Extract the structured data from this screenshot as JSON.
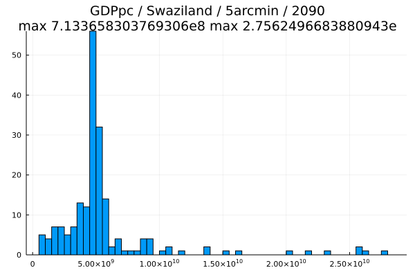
{
  "chart_data": {
    "type": "bar",
    "title": "GDPpc / Swaziland / 5arcmin / 2090",
    "subtitle": "max 7.133658303769306e8  max 2.7562496683880943e",
    "xlabel": "",
    "ylabel": "",
    "grid": true,
    "legend": "none",
    "bar_color": "#009AF9",
    "bin_width": 500000000,
    "xlim": [
      -500000000,
      29500000000
    ],
    "ylim": [
      0,
      56
    ],
    "x": [
      500000000,
      1000000000,
      1500000000,
      2000000000,
      2500000000,
      3000000000,
      3500000000,
      4000000000,
      4500000000,
      5000000000,
      5500000000,
      6000000000,
      6500000000,
      7000000000,
      7500000000,
      8000000000,
      8500000000,
      9000000000,
      9500000000,
      10000000000,
      10500000000,
      11000000000,
      11500000000,
      12000000000,
      12500000000,
      13000000000,
      13500000000,
      14000000000,
      14500000000,
      15000000000,
      15500000000,
      16000000000,
      16500000000,
      17000000000,
      17500000000,
      18000000000,
      18500000000,
      19000000000,
      19500000000,
      20000000000,
      20500000000,
      21000000000,
      21500000000,
      22000000000,
      22500000000,
      23000000000,
      23500000000,
      24000000000,
      24500000000,
      25000000000,
      25500000000,
      26000000000,
      26500000000,
      27000000000,
      27500000000
    ],
    "values": [
      5,
      4,
      7,
      7,
      5,
      7,
      13,
      12,
      56,
      32,
      14,
      2,
      4,
      1,
      1,
      1,
      4,
      4,
      0,
      1,
      2,
      0,
      1,
      0,
      0,
      0,
      2,
      0,
      0,
      1,
      0,
      1,
      0,
      0,
      0,
      0,
      0,
      0,
      0,
      1,
      0,
      0,
      1,
      0,
      0,
      1,
      0,
      0,
      0,
      0,
      2,
      1,
      0,
      0,
      1
    ],
    "x_ticks": [
      {
        "value": 0,
        "mantissa": "0",
        "exp": ""
      },
      {
        "value": 5000000000,
        "mantissa": "5.00×10",
        "exp": "9"
      },
      {
        "value": 10000000000,
        "mantissa": "1.00×10",
        "exp": "10"
      },
      {
        "value": 15000000000,
        "mantissa": "1.50×10",
        "exp": "10"
      },
      {
        "value": 20000000000,
        "mantissa": "2.00×10",
        "exp": "10"
      },
      {
        "value": 25000000000,
        "mantissa": "2.50×10",
        "exp": "10"
      }
    ],
    "y_ticks": [
      0,
      10,
      20,
      30,
      40,
      50
    ]
  }
}
